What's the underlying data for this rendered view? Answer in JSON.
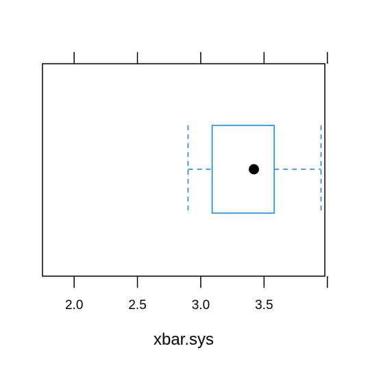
{
  "chart_data": {
    "type": "boxplot",
    "title": "",
    "xlabel": "xbar.sys",
    "ylabel": "",
    "xlim": [
      1.75,
      3.98
    ],
    "x_ticks": [
      2.0,
      2.5,
      3.0,
      3.5,
      4.0
    ],
    "x_tick_labels": [
      "2.0",
      "2.5",
      "3.0",
      "3.5",
      ""
    ],
    "grid": false,
    "box": {
      "whisker_low": 2.9,
      "q1": 3.09,
      "median": 3.42,
      "q3": 3.58,
      "whisker_high": 3.95,
      "color": "#0080ff"
    },
    "colors": {
      "box": "#0080ff",
      "median_dot": "#000000",
      "axes": "#000000"
    }
  }
}
